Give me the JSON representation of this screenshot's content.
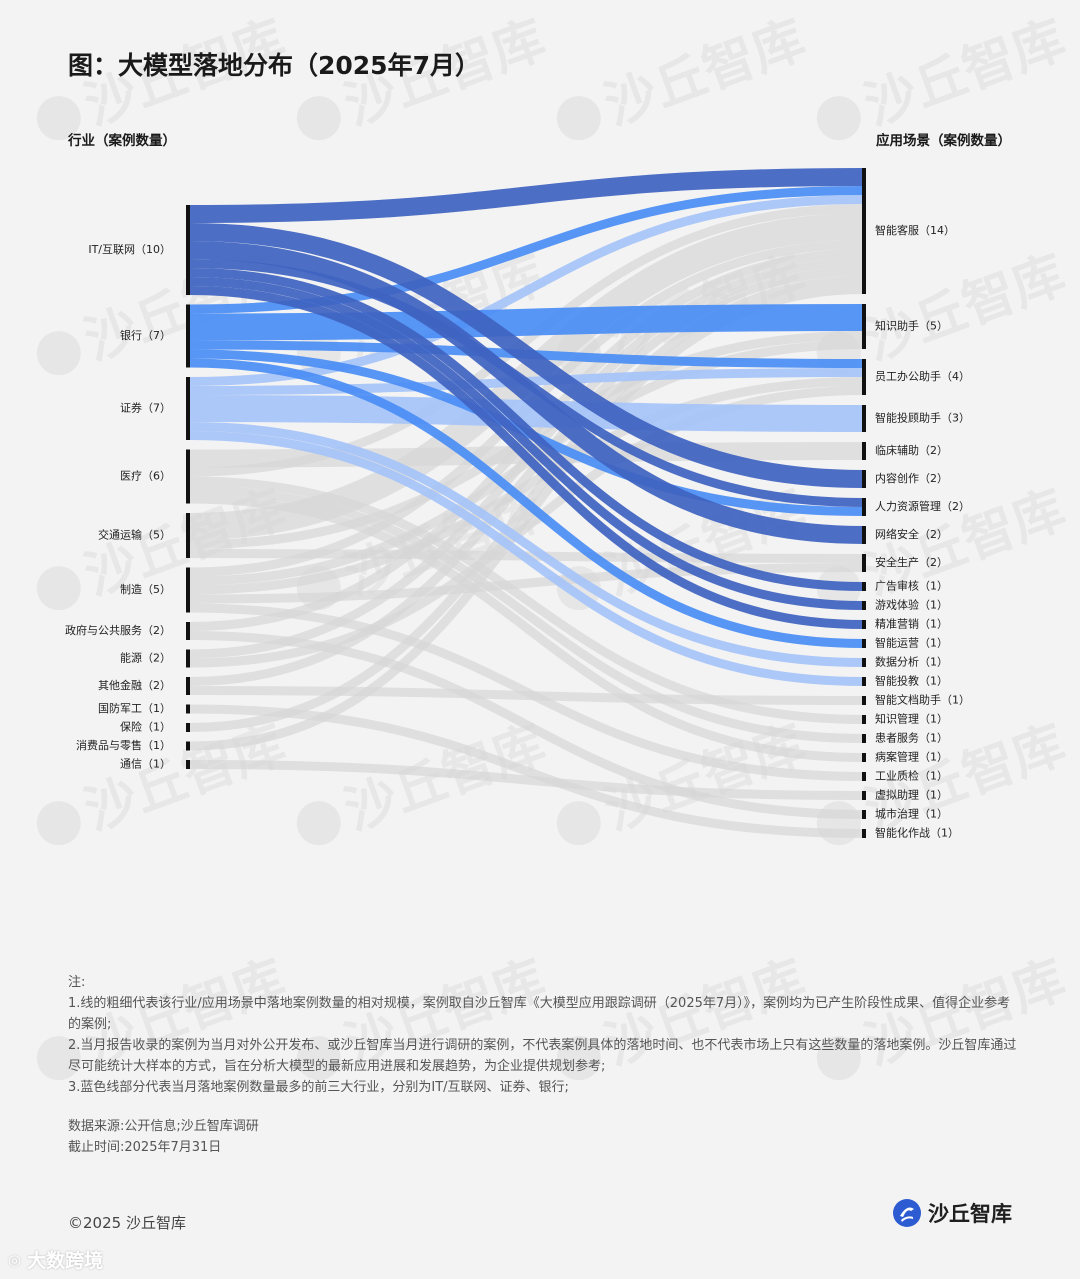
{
  "title": "图：大模型落地分布（2025年7月）",
  "left_header": "行业（案例数量）",
  "right_header": "应用场景（案例数量）",
  "watermark_text": "沙丘智库",
  "colors": {
    "it": "#3f63c1",
    "bank": "#4b8ef5",
    "securities": "#a6c4f7",
    "other": "#d5d5d5",
    "node": "#111111",
    "text": "#222222"
  },
  "chart_data": {
    "type": "sankey",
    "title": "图：大模型落地分布（2025年7月）",
    "left_label": "行业（案例数量）",
    "right_label": "应用场景（案例数量）",
    "sources": [
      {
        "id": "it",
        "name": "IT/互联网",
        "value": 10,
        "color_key": "it"
      },
      {
        "id": "bank",
        "name": "银行",
        "value": 7,
        "color_key": "bank"
      },
      {
        "id": "sec",
        "name": "证券",
        "value": 7,
        "color_key": "securities"
      },
      {
        "id": "med",
        "name": "医疗",
        "value": 6,
        "color_key": "other"
      },
      {
        "id": "trans",
        "name": "交通运输",
        "value": 5,
        "color_key": "other"
      },
      {
        "id": "mfg",
        "name": "制造",
        "value": 5,
        "color_key": "other"
      },
      {
        "id": "gov",
        "name": "政府与公共服务",
        "value": 2,
        "color_key": "other"
      },
      {
        "id": "energy",
        "name": "能源",
        "value": 2,
        "color_key": "other"
      },
      {
        "id": "ofin",
        "name": "其他金融",
        "value": 2,
        "color_key": "other"
      },
      {
        "id": "def",
        "name": "国防军工",
        "value": 1,
        "color_key": "other"
      },
      {
        "id": "ins",
        "name": "保险",
        "value": 1,
        "color_key": "other"
      },
      {
        "id": "cons",
        "name": "消费品与零售",
        "value": 1,
        "color_key": "other"
      },
      {
        "id": "tel",
        "name": "通信",
        "value": 1,
        "color_key": "other"
      }
    ],
    "targets": [
      {
        "id": "cs",
        "name": "智能客服",
        "value": 14
      },
      {
        "id": "ka",
        "name": "知识助手",
        "value": 5
      },
      {
        "id": "oa",
        "name": "员工办公助手",
        "value": 4
      },
      {
        "id": "ia",
        "name": "智能投顾助手",
        "value": 3
      },
      {
        "id": "clin",
        "name": "临床辅助",
        "value": 2
      },
      {
        "id": "cont",
        "name": "内容创作",
        "value": 2
      },
      {
        "id": "hr",
        "name": "人力资源管理",
        "value": 2
      },
      {
        "id": "sec2",
        "name": "网络安全",
        "value": 2
      },
      {
        "id": "safe",
        "name": "安全生产",
        "value": 2
      },
      {
        "id": "ad",
        "name": "广告审核",
        "value": 1
      },
      {
        "id": "game",
        "name": "游戏体验",
        "value": 1
      },
      {
        "id": "mkt",
        "name": "精准营销",
        "value": 1
      },
      {
        "id": "ops",
        "name": "智能运营",
        "value": 1
      },
      {
        "id": "data",
        "name": "数据分析",
        "value": 1
      },
      {
        "id": "inv",
        "name": "智能投教",
        "value": 1
      },
      {
        "id": "doc",
        "name": "智能文档助手",
        "value": 1
      },
      {
        "id": "km",
        "name": "知识管理",
        "value": 1
      },
      {
        "id": "pat",
        "name": "患者服务",
        "value": 1
      },
      {
        "id": "med2",
        "name": "病案管理",
        "value": 1
      },
      {
        "id": "qc",
        "name": "工业质检",
        "value": 1
      },
      {
        "id": "va",
        "name": "虚拟助理",
        "value": 1
      },
      {
        "id": "city",
        "name": "城市治理",
        "value": 1
      },
      {
        "id": "war",
        "name": "智能化作战",
        "value": 1
      }
    ],
    "links": [
      {
        "source": "it",
        "target": "cs",
        "value": 2
      },
      {
        "source": "it",
        "target": "cont",
        "value": 2
      },
      {
        "source": "it",
        "target": "sec2",
        "value": 2
      },
      {
        "source": "it",
        "target": "hr",
        "value": 1
      },
      {
        "source": "it",
        "target": "ad",
        "value": 1
      },
      {
        "source": "it",
        "target": "game",
        "value": 1
      },
      {
        "source": "it",
        "target": "mkt",
        "value": 1
      },
      {
        "source": "bank",
        "target": "cs",
        "value": 1
      },
      {
        "source": "bank",
        "target": "ka",
        "value": 3
      },
      {
        "source": "bank",
        "target": "oa",
        "value": 1
      },
      {
        "source": "bank",
        "target": "hr",
        "value": 1
      },
      {
        "source": "bank",
        "target": "ops",
        "value": 1
      },
      {
        "source": "sec",
        "target": "cs",
        "value": 1
      },
      {
        "source": "sec",
        "target": "oa",
        "value": 1
      },
      {
        "source": "sec",
        "target": "ia",
        "value": 3
      },
      {
        "source": "sec",
        "target": "data",
        "value": 1
      },
      {
        "source": "sec",
        "target": "inv",
        "value": 1
      },
      {
        "source": "med",
        "target": "clin",
        "value": 2
      },
      {
        "source": "med",
        "target": "cs",
        "value": 1
      },
      {
        "source": "med",
        "target": "km",
        "value": 1
      },
      {
        "source": "med",
        "target": "pat",
        "value": 1
      },
      {
        "source": "med",
        "target": "med2",
        "value": 1
      },
      {
        "source": "trans",
        "target": "cs",
        "value": 3
      },
      {
        "source": "trans",
        "target": "ka",
        "value": 1
      },
      {
        "source": "trans",
        "target": "safe",
        "value": 1
      },
      {
        "source": "mfg",
        "target": "cs",
        "value": 1
      },
      {
        "source": "mfg",
        "target": "ka",
        "value": 1
      },
      {
        "source": "mfg",
        "target": "oa",
        "value": 1
      },
      {
        "source": "mfg",
        "target": "safe",
        "value": 1
      },
      {
        "source": "mfg",
        "target": "qc",
        "value": 1
      },
      {
        "source": "gov",
        "target": "cs",
        "value": 1
      },
      {
        "source": "gov",
        "target": "city",
        "value": 1
      },
      {
        "source": "energy",
        "target": "cs",
        "value": 1
      },
      {
        "source": "energy",
        "target": "oa",
        "value": 1
      },
      {
        "source": "ofin",
        "target": "cs",
        "value": 1
      },
      {
        "source": "ofin",
        "target": "doc",
        "value": 1
      },
      {
        "source": "def",
        "target": "war",
        "value": 1
      },
      {
        "source": "ins",
        "target": "cs",
        "value": 1
      },
      {
        "source": "cons",
        "target": "cs",
        "value": 1
      },
      {
        "source": "tel",
        "target": "va",
        "value": 1
      }
    ]
  },
  "notes": {
    "heading": "注:",
    "items": [
      "1.线的粗细代表该行业/应用场景中落地案例数量的相对规模，案例取自沙丘智库《大模型应用跟踪调研（2025年7月）》，案例均为已产生阶段性成果、值得企业参考的案例;",
      "2.当月报告收录的案例为当月对外公开发布、或沙丘智库当月进行调研的案例，不代表案例具体的落地时间、也不代表市场上只有这些数量的落地案例。沙丘智库通过尽可能统计大样本的方式，旨在分析大模型的最新应用进展和发展趋势，为企业提供规划参考;",
      "3.蓝色线部分代表当月落地案例数量最多的前三大行业，分别为IT/互联网、证券、银行;"
    ]
  },
  "source": {
    "line1": "数据来源:公开信息;沙丘智库调研",
    "line2": "截止时间:2025年7月31日"
  },
  "footer": {
    "copyright": "©2025 沙丘智库",
    "brand": "沙丘智库",
    "corner_watermark": "大数跨境"
  }
}
